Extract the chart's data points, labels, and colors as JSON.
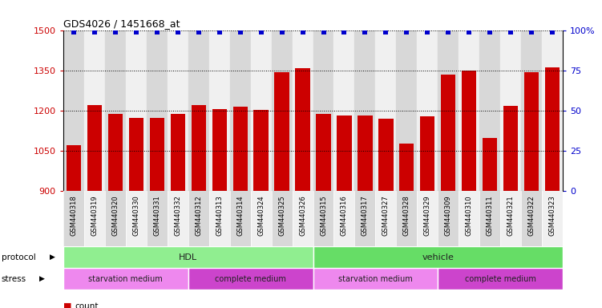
{
  "title": "GDS4026 / 1451668_at",
  "samples": [
    "GSM440318",
    "GSM440319",
    "GSM440320",
    "GSM440330",
    "GSM440331",
    "GSM440332",
    "GSM440312",
    "GSM440313",
    "GSM440314",
    "GSM440324",
    "GSM440325",
    "GSM440326",
    "GSM440315",
    "GSM440316",
    "GSM440317",
    "GSM440327",
    "GSM440328",
    "GSM440329",
    "GSM440309",
    "GSM440310",
    "GSM440311",
    "GSM440321",
    "GSM440322",
    "GSM440323"
  ],
  "counts": [
    1072,
    1222,
    1190,
    1175,
    1175,
    1188,
    1222,
    1207,
    1215,
    1205,
    1345,
    1360,
    1188,
    1183,
    1183,
    1170,
    1078,
    1180,
    1335,
    1350,
    1100,
    1220,
    1345,
    1362
  ],
  "percentiles": [
    99,
    99,
    99,
    99,
    99,
    99,
    99,
    99,
    99,
    99,
    99,
    99,
    99,
    99,
    99,
    99,
    99,
    99,
    99,
    99,
    99,
    99,
    99,
    99
  ],
  "bar_color": "#CC0000",
  "dot_color": "#0000CC",
  "ylim_left": [
    900,
    1500
  ],
  "ylim_right": [
    0,
    100
  ],
  "yticks_left": [
    900,
    1050,
    1200,
    1350,
    1500
  ],
  "yticks_right": [
    0,
    25,
    50,
    75,
    100
  ],
  "protocol_groups": [
    {
      "label": "HDL",
      "start": 0,
      "end": 11,
      "color": "#90EE90"
    },
    {
      "label": "vehicle",
      "start": 12,
      "end": 23,
      "color": "#66DD66"
    }
  ],
  "stress_groups": [
    {
      "label": "starvation medium",
      "start": 0,
      "end": 5,
      "color": "#EE88EE"
    },
    {
      "label": "complete medium",
      "start": 6,
      "end": 11,
      "color": "#CC44CC"
    },
    {
      "label": "starvation medium",
      "start": 12,
      "end": 17,
      "color": "#EE88EE"
    },
    {
      "label": "complete medium",
      "start": 18,
      "end": 23,
      "color": "#CC44CC"
    }
  ],
  "col_bg_even": "#d8d8d8",
  "col_bg_odd": "#f0f0f0",
  "plot_bg": "#ffffff"
}
